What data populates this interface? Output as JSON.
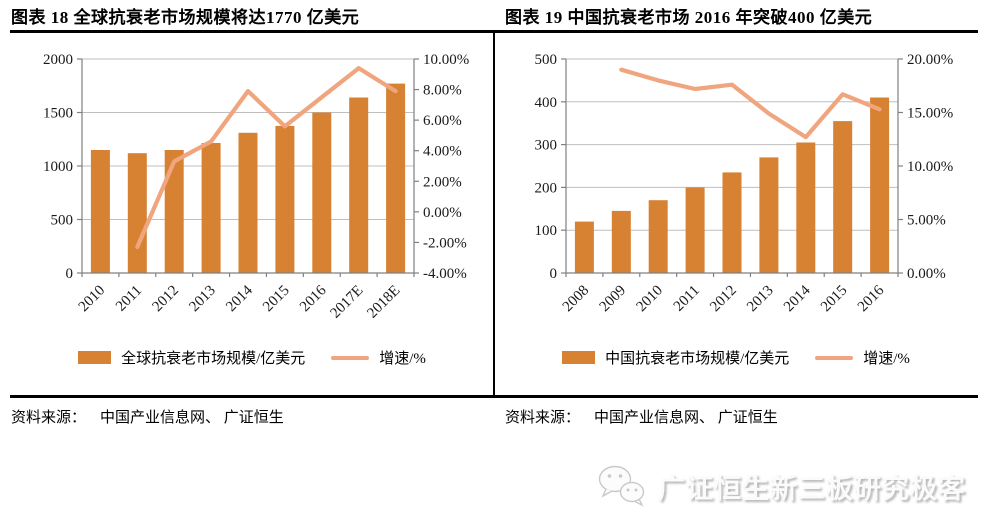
{
  "figures": [
    {
      "title": "图表 18 全球抗衰老市场规模将达1770 亿美元",
      "source_label": "资料来源：",
      "source_text": "中国产业信息网、 广证恒生",
      "legend": [
        {
          "label": "全球抗衰老市场规模/亿美元",
          "type": "bar"
        },
        {
          "label": "增速/%",
          "type": "line"
        }
      ]
    },
    {
      "title": "图表 19 中国抗衰老市场 2016 年突破400 亿美元",
      "source_label": "资料来源：",
      "source_text": "中国产业信息网、 广证恒生",
      "legend": [
        {
          "label": "中国抗衰老市场规模/亿美元",
          "type": "bar"
        },
        {
          "label": "增速/%",
          "type": "line"
        }
      ]
    }
  ],
  "chart_data": [
    {
      "type": "bar",
      "title": "图表 18 全球抗衰老市场规模将达1770 亿美元",
      "categories": [
        "2010",
        "2011",
        "2012",
        "2013",
        "2014",
        "2015",
        "2016",
        "2017E",
        "2018E"
      ],
      "series": [
        {
          "name": "全球抗衰老市场规模/亿美元",
          "type": "bar",
          "axis": "left",
          "values": [
            1150,
            1120,
            1150,
            1215,
            1310,
            1375,
            1500,
            1640,
            1770
          ]
        },
        {
          "name": "增速/%",
          "type": "line",
          "axis": "right",
          "values": [
            null,
            -2.3,
            3.3,
            4.6,
            7.9,
            5.6,
            7.5,
            9.4,
            7.9
          ]
        }
      ],
      "xlabel": "",
      "ylabel": "",
      "left_axis": {
        "min": 0,
        "max": 2000,
        "step": 500,
        "labels": [
          "0",
          "500",
          "1000",
          "1500",
          "2000"
        ]
      },
      "right_axis": {
        "min": -4,
        "max": 10,
        "step": 2,
        "labels": [
          "-4.00%",
          "-2.00%",
          "0.00%",
          "2.00%",
          "4.00%",
          "6.00%",
          "8.00%",
          "10.00%"
        ]
      },
      "grid": true,
      "legend_position": "bottom"
    },
    {
      "type": "bar",
      "title": "图表 19 中国抗衰老市场 2016 年突破400 亿美元",
      "categories": [
        "2008",
        "2009",
        "2010",
        "2011",
        "2012",
        "2013",
        "2014",
        "2015",
        "2016"
      ],
      "series": [
        {
          "name": "中国抗衰老市场规模/亿美元",
          "type": "bar",
          "axis": "left",
          "values": [
            120,
            145,
            170,
            200,
            235,
            270,
            305,
            355,
            410
          ]
        },
        {
          "name": "增速/%",
          "type": "line",
          "axis": "right",
          "values": [
            null,
            19.0,
            18.0,
            17.2,
            17.6,
            14.9,
            12.7,
            16.7,
            15.3
          ]
        }
      ],
      "xlabel": "",
      "ylabel": "",
      "left_axis": {
        "min": 0,
        "max": 500,
        "step": 100,
        "labels": [
          "0",
          "100",
          "200",
          "300",
          "400",
          "500"
        ]
      },
      "right_axis": {
        "min": 0,
        "max": 20,
        "step": 5,
        "labels": [
          "0.00%",
          "5.00%",
          "10.00%",
          "15.00%",
          "20.00%"
        ]
      },
      "grid": true,
      "legend_position": "bottom"
    }
  ],
  "watermark": {
    "icon": "wechat-icon",
    "text": "广证恒生新三板研究极客"
  },
  "colors": {
    "bar": "#D78232",
    "line": "#F0A57E",
    "grid": "#BFBFBF",
    "axis": "#808080",
    "ink": "#1a1a1a"
  }
}
